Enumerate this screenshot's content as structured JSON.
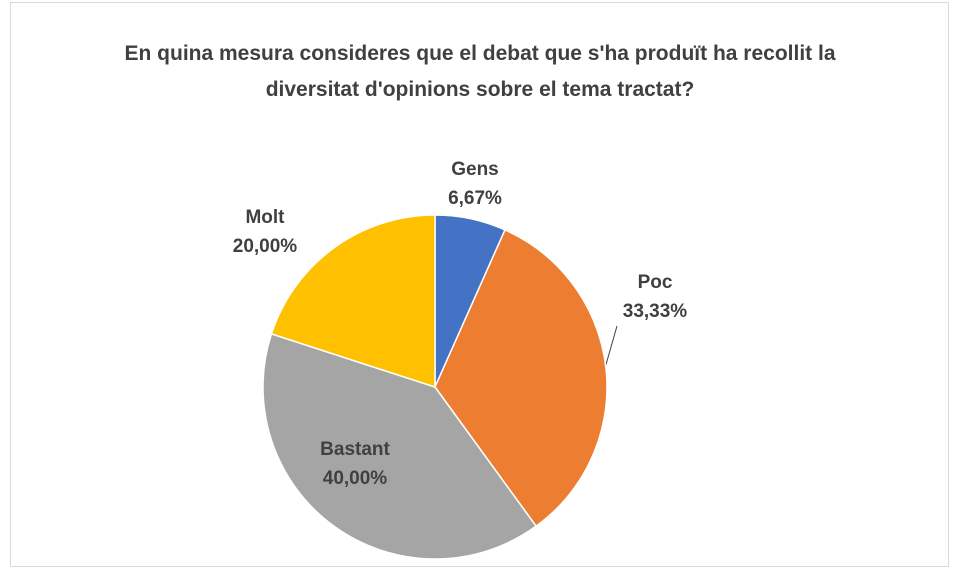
{
  "chart_data": {
    "type": "pie",
    "title": "En quina mesura consideres que el debat que s'ha produït ha recollit la diversitat d'opinions sobre el tema tractat?",
    "categories": [
      "Gens",
      "Poc",
      "Bastant",
      "Molt"
    ],
    "values": [
      6.67,
      33.33,
      40,
      20
    ],
    "value_labels": [
      "6,67%",
      "33,33%",
      "40,00%",
      "20,00%"
    ],
    "colors": [
      "#4472c4",
      "#ed7d31",
      "#a5a5a5",
      "#ffc000"
    ]
  }
}
